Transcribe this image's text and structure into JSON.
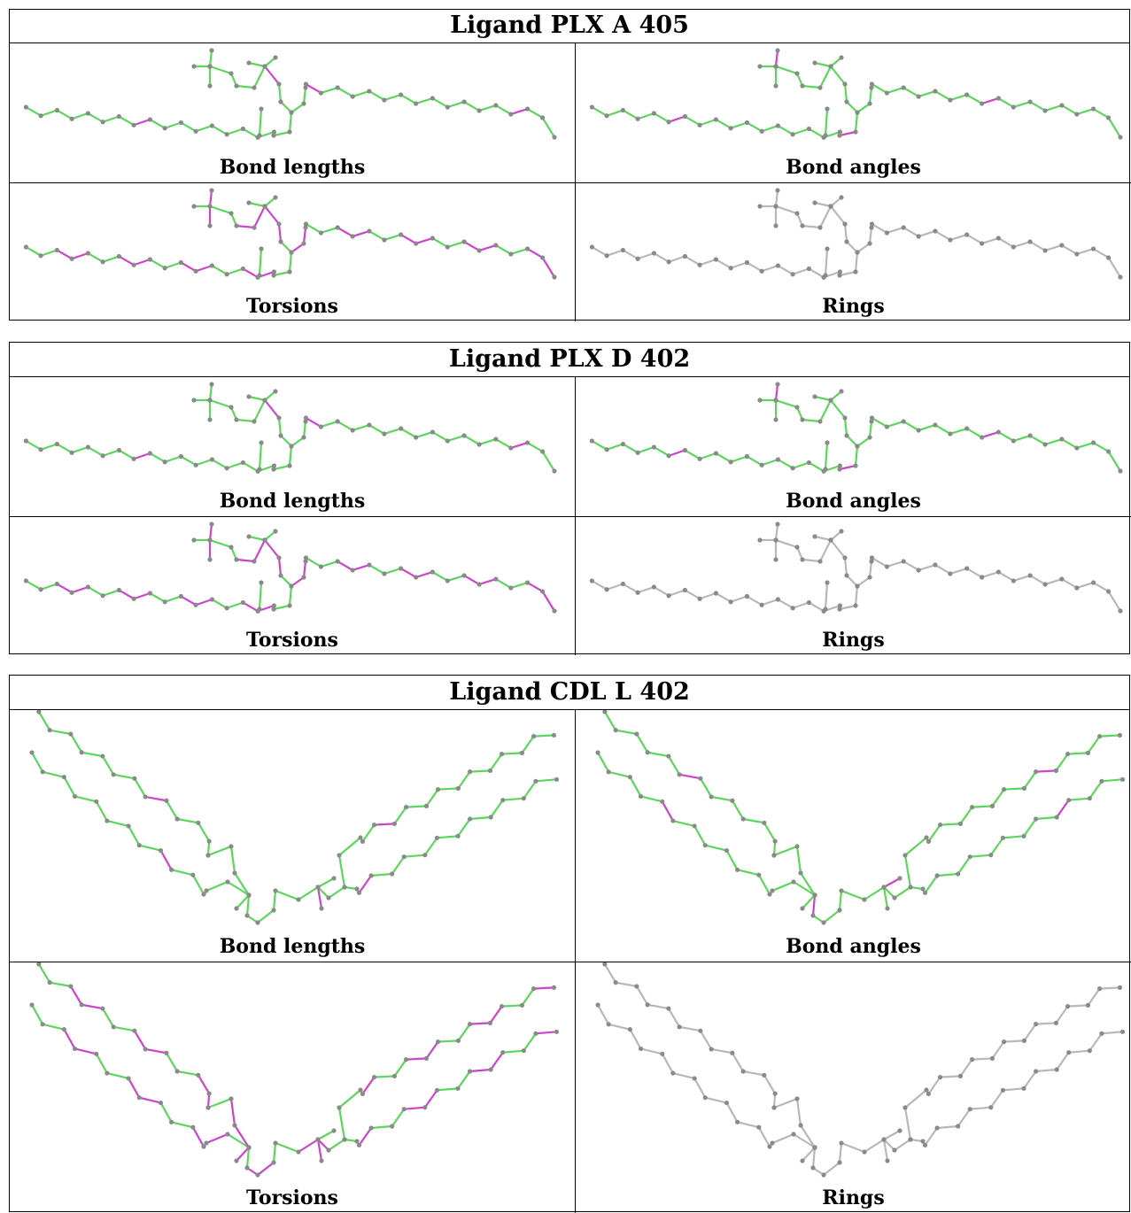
{
  "ligands": [
    {
      "title": "Ligand PLX A 405",
      "panels": [
        "Bond lengths",
        "Bond angles",
        "Torsions",
        "Rings"
      ]
    },
    {
      "title": "Ligand PLX D 402",
      "panels": [
        "Bond lengths",
        "Bond angles",
        "Torsions",
        "Rings"
      ]
    },
    {
      "title": "Ligand CDL L 402",
      "panels": [
        "Bond lengths",
        "Bond angles",
        "Torsions",
        "Rings"
      ]
    }
  ]
}
